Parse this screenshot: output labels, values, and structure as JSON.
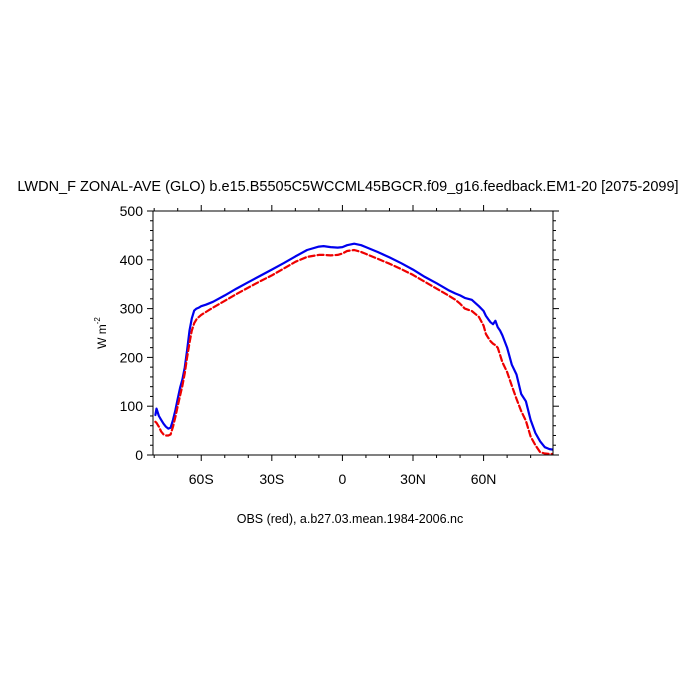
{
  "chart_data": {
    "type": "line",
    "title": "LWDN_F ZONAL-AVE (GLO) b.e15.B5505C5WCCML45BGCR.f09_g16.feedback.EM1-20 [2075-2099]",
    "ylabel_main": "W m",
    "ylabel_exp": "-2",
    "caption": "OBS (red), a.b27.03.mean.1984-2006.nc",
    "xlim": [
      -80.5,
      89.5
    ],
    "ylim": [
      0,
      500
    ],
    "x_ticks": [
      {
        "value": -60,
        "label": "60S"
      },
      {
        "value": -30,
        "label": "30S"
      },
      {
        "value": 0,
        "label": "0"
      },
      {
        "value": 30,
        "label": "30N"
      },
      {
        "value": 60,
        "label": "60N"
      }
    ],
    "y_ticks": [
      {
        "value": 0,
        "label": "0"
      },
      {
        "value": 100,
        "label": "100"
      },
      {
        "value": 200,
        "label": "200"
      },
      {
        "value": 300,
        "label": "300"
      },
      {
        "value": 400,
        "label": "400"
      },
      {
        "value": 500,
        "label": "500"
      }
    ],
    "grid": false,
    "series": [
      {
        "color": "#0000ee",
        "dash": "solid",
        "x": [
          -79.5,
          -79,
          -78,
          -77,
          -76,
          -75,
          -74,
          -73,
          -72,
          -71,
          -70,
          -69,
          -68,
          -67,
          -66,
          -65,
          -64,
          -63,
          -62,
          -61,
          -60,
          -58,
          -55,
          -50,
          -45,
          -40,
          -35,
          -30,
          -25,
          -20,
          -15,
          -10,
          -8,
          -5,
          -2,
          0,
          2,
          5,
          8,
          10,
          15,
          20,
          25,
          30,
          35,
          40,
          45,
          48,
          50,
          52,
          55,
          58,
          60,
          61,
          62,
          63,
          64,
          65,
          66,
          67,
          68,
          70,
          72,
          74,
          76,
          78,
          80,
          82,
          84,
          86,
          88,
          89.5
        ],
        "y": [
          82,
          95,
          80,
          72,
          64,
          58,
          54,
          56,
          72,
          92,
          115,
          138,
          155,
          180,
          215,
          255,
          280,
          296,
          300,
          302,
          305,
          308,
          314,
          327,
          341,
          354,
          367,
          380,
          393,
          407,
          420,
          427,
          428,
          426,
          425,
          426,
          430,
          433,
          430,
          426,
          416,
          405,
          393,
          380,
          365,
          352,
          338,
          331,
          327,
          322,
          318,
          305,
          295,
          285,
          278,
          272,
          268,
          275,
          262,
          255,
          245,
          220,
          185,
          165,
          125,
          110,
          72,
          45,
          28,
          16,
          12,
          11
        ]
      },
      {
        "color": "#ee0000",
        "dash": "dashed",
        "x": [
          -79.5,
          -79,
          -78,
          -77,
          -76,
          -75,
          -74,
          -73,
          -72,
          -71,
          -70,
          -69,
          -68,
          -67,
          -66,
          -65,
          -64,
          -63,
          -62,
          -61,
          -60,
          -58,
          -55,
          -50,
          -45,
          -40,
          -35,
          -30,
          -25,
          -20,
          -15,
          -10,
          -8,
          -5,
          -2,
          0,
          2,
          5,
          8,
          10,
          15,
          20,
          25,
          30,
          35,
          40,
          45,
          48,
          50,
          52,
          55,
          58,
          60,
          61,
          62,
          63,
          64,
          65,
          66,
          67,
          68,
          70,
          72,
          74,
          76,
          78,
          80,
          82,
          84,
          86,
          88,
          89.5
        ],
        "y": [
          68,
          66,
          58,
          48,
          42,
          40,
          40,
          42,
          58,
          78,
          100,
          122,
          142,
          168,
          200,
          230,
          255,
          270,
          278,
          283,
          287,
          293,
          302,
          316,
          330,
          343,
          356,
          368,
          382,
          396,
          406,
          410,
          410,
          409,
          410,
          413,
          418,
          420,
          416,
          412,
          402,
          392,
          381,
          369,
          355,
          341,
          327,
          318,
          310,
          300,
          295,
          283,
          265,
          248,
          240,
          233,
          228,
          225,
          220,
          205,
          190,
          170,
          142,
          115,
          90,
          70,
          38,
          20,
          6,
          3,
          2,
          2
        ]
      }
    ]
  }
}
